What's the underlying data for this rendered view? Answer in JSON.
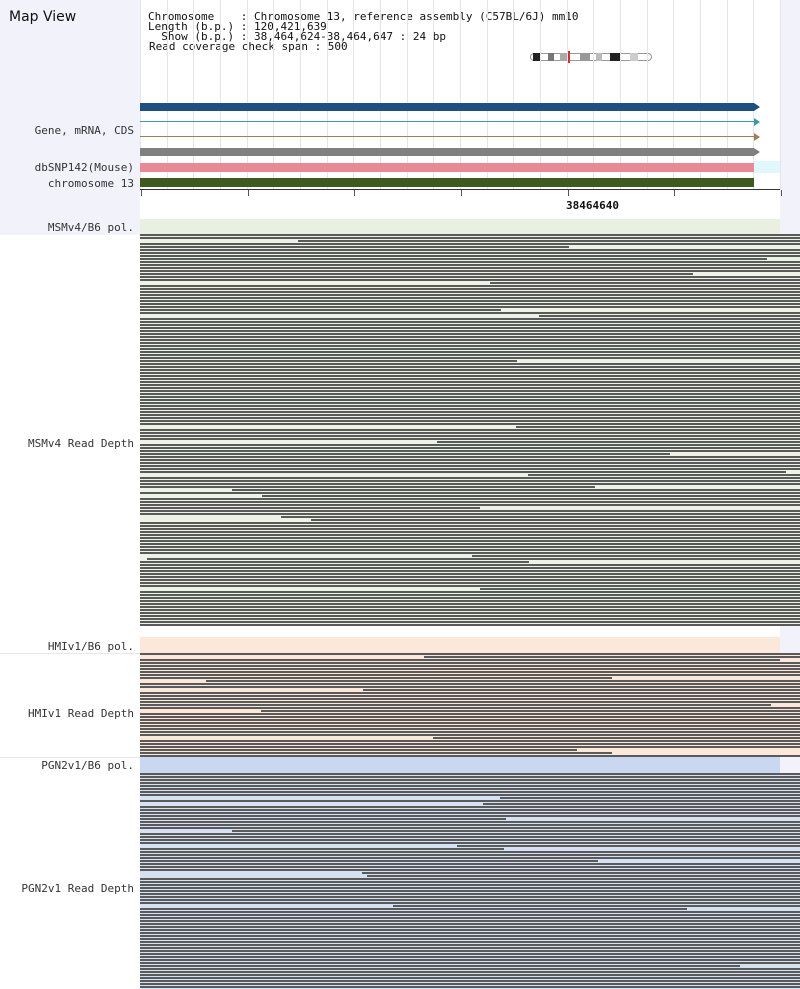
{
  "title": "Map View",
  "info": {
    "chromosome_line": "Chromosome    : Chromosome 13, reference assembly (C57BL/6J) mm10",
    "length_line": "Length (b.p.) : 120,421,639",
    "show_line": "  Show (b.p.) : 38,464,624-38,464,647 : 24 bp",
    "coverage_line": "Read coverage check span : 500"
  },
  "tracks": {
    "gene_label": "Gene, mRNA, CDS",
    "snp_label": "dbSNP142(Mouse)",
    "chrom_label": "chromosome 13"
  },
  "axis": {
    "position_label": "38464640"
  },
  "sections": [
    {
      "pol_label": "MSMv4/B6 pol.",
      "depth_label": "MSMv4 Read Depth"
    },
    {
      "pol_label": "HMIv1/B6 pol.",
      "depth_label": "HMIv1 Read Depth"
    },
    {
      "pol_label": "PGN2v1/B6 pol.",
      "depth_label": "PGN2v1 Read Depth"
    }
  ],
  "colors": {
    "gene_bar": "#1f4f80",
    "transcript_line": "#3a9aa8",
    "mrna_line": "#a08050",
    "cds_bar": "#808080",
    "snp_bar": "#e88a96",
    "chrom_bar": "#3f5a1f",
    "msm_pol": "#e9efe1",
    "hmi_pol": "#fbe8db",
    "pgn_pol": "#c9d8f0",
    "read": "#5a5a5a"
  }
}
